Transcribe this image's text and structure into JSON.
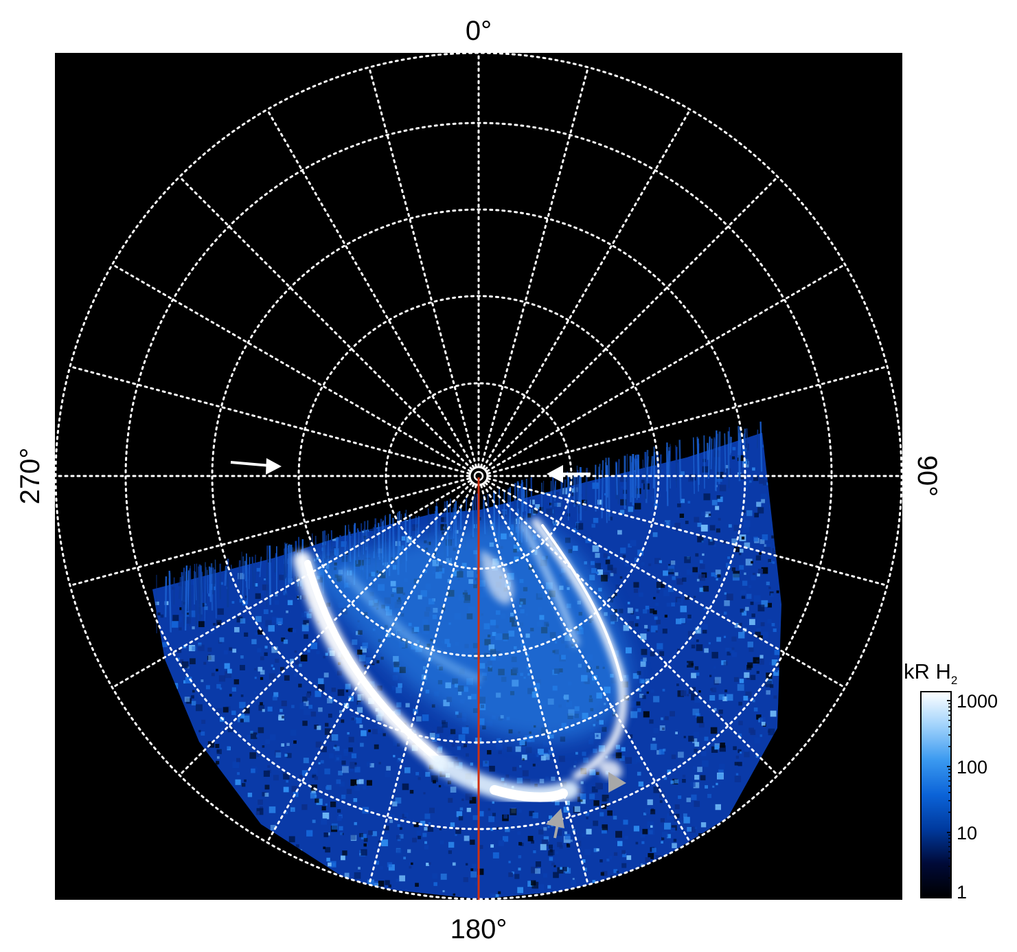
{
  "azimuth_labels": {
    "top": "0°",
    "right": "90°",
    "bottom": "180°",
    "left": "270°"
  },
  "colorbar": {
    "title_main": "kR H",
    "title_sub": "2",
    "scale": "log",
    "range": [
      1,
      1000
    ],
    "ticks": [
      "1000",
      "100",
      "10",
      "1"
    ],
    "gradient": [
      "#000000",
      "#000a38",
      "#003a9e",
      "#0b63d8",
      "#3a99f0",
      "#9fd2fb",
      "#ffffff"
    ]
  },
  "colors": {
    "background_frame": "#000000",
    "grid": "#ffffff",
    "meridian_line": "#d03010",
    "arrow_white": "#ffffff",
    "arrow_gray": "#a8a8a8",
    "aurora_faint": "#0a3fb0",
    "aurora_mid": "#2e8cf0",
    "aurora_bright": "#ffffff"
  }
}
